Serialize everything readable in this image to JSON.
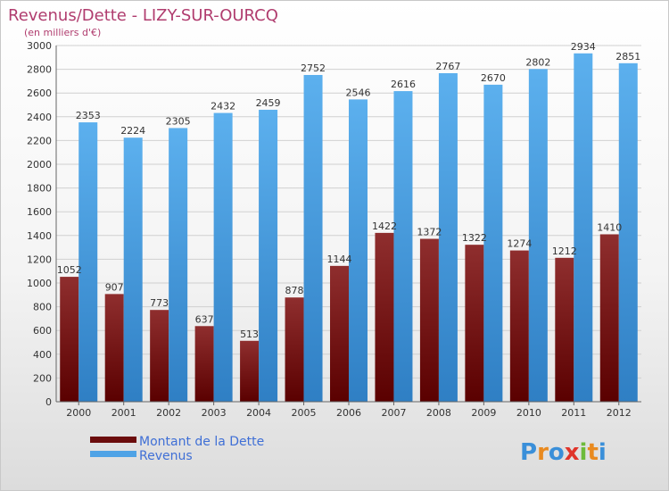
{
  "chart_data": {
    "type": "bar",
    "title": "Revenus/Dette - LIZY-SUR-OURCQ",
    "subtitle": "(en milliers d'€)",
    "categories": [
      "2000",
      "2001",
      "2002",
      "2003",
      "2004",
      "2005",
      "2006",
      "2007",
      "2008",
      "2009",
      "2010",
      "2011",
      "2012"
    ],
    "series": [
      {
        "name": "Montant de la Dette",
        "color": "#6b0c0c",
        "values": [
          1052,
          907,
          773,
          637,
          513,
          878,
          1144,
          1422,
          1372,
          1322,
          1274,
          1212,
          1410
        ],
        "labels": [
          "1052",
          "907",
          "773",
          "637",
          "513",
          "878",
          "1144",
          "1422",
          "1372",
          "1322",
          "1274",
          "1212",
          "1410"
        ]
      },
      {
        "name": "Revenus",
        "color": "#4fa3e6",
        "values": [
          2353,
          2224,
          2305,
          2432,
          2459,
          2752,
          2546,
          2616,
          2767,
          2670,
          2802,
          2934,
          2851
        ],
        "labels": [
          "2353",
          "2224",
          "2305",
          "2432",
          "2459",
          "2752",
          "2546",
          "2616",
          "2767",
          "2670",
          "2802",
          "2934",
          "2851"
        ]
      }
    ],
    "yticks": [
      "0",
      "200",
      "400",
      "600",
      "800",
      "1000",
      "1200",
      "1400",
      "1600",
      "1800",
      "2000",
      "2200",
      "2400",
      "2600",
      "2800",
      "3000"
    ],
    "ylim": [
      0,
      3000
    ],
    "grid": true,
    "legend_position": "bottom-left"
  },
  "logo": {
    "letters": [
      "P",
      "r",
      "o",
      "x",
      "i",
      "t",
      "i"
    ],
    "colors": [
      "#3a8fd9",
      "#e98a1f",
      "#3a8fd9",
      "#e0342a",
      "#6dbb3a",
      "#e98a1f",
      "#3a8fd9"
    ]
  }
}
